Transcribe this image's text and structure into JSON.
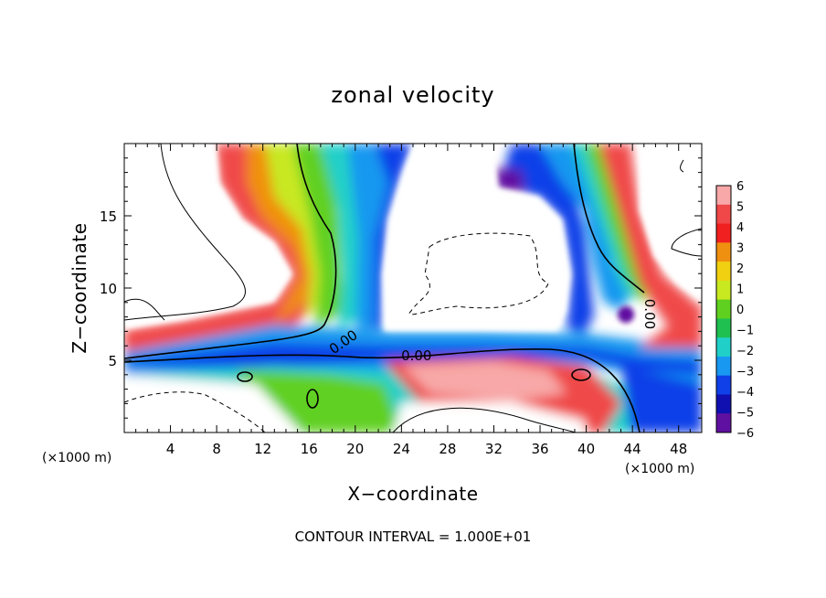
{
  "chart_data": {
    "type": "heatmap",
    "title": "zonal velocity",
    "xlabel": "X−coordinate",
    "ylabel": "Z−coordinate",
    "x_unit": "(×1000 m)",
    "x_unit_right": "(×1000 m)",
    "xlim": [
      0,
      50
    ],
    "ylim": [
      0,
      20
    ],
    "x_ticks": [
      4,
      8,
      12,
      16,
      20,
      24,
      28,
      32,
      36,
      40,
      44,
      48
    ],
    "y_ticks": [
      5,
      10,
      15
    ],
    "colorbar": {
      "levels": [
        6,
        5,
        4,
        3,
        2,
        1,
        0,
        -1,
        -2,
        -3,
        -4,
        -5,
        -6
      ],
      "labels": [
        "6",
        "5",
        "4",
        "3",
        "2",
        "1",
        "0",
        "−1",
        "−2",
        "−3",
        "−4",
        "−5",
        "−6"
      ],
      "colors": [
        "#f8a8a8",
        "#f04848",
        "#f02020",
        "#f09010",
        "#f0d010",
        "#c8e820",
        "#60d020",
        "#20c050",
        "#20d0c8",
        "#1898f0",
        "#1040e8",
        "#1010b0",
        "#6010a0"
      ]
    },
    "contour_labels": [
      {
        "text": "0.00",
        "x": 19.2,
        "y": 6.0
      },
      {
        "text": "0.00",
        "x": 25.3,
        "y": 5.0
      },
      {
        "text": "0.00",
        "x": 45.1,
        "y": 8.2
      }
    ],
    "contour_interval_text": "CONTOUR INTERVAL = 1.000E+01",
    "grid": false,
    "legend": "colorbar-right"
  }
}
